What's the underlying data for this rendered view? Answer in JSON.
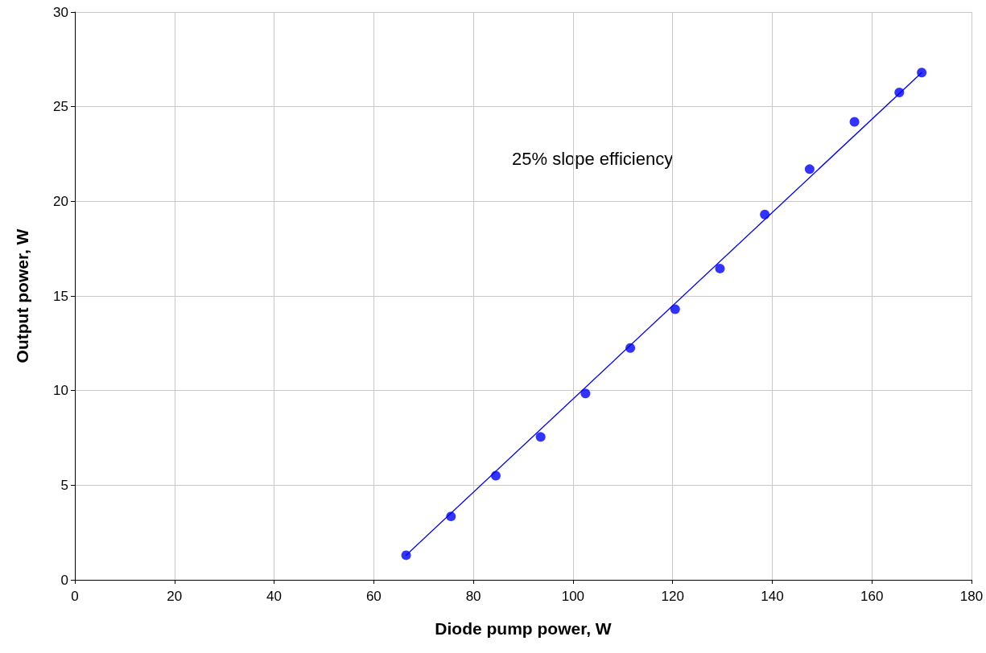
{
  "chart_data": {
    "type": "scatter",
    "xlabel": "Diode pump power, W",
    "ylabel": "Output power, W",
    "series": [
      {
        "color": "#0000ff",
        "marker": "circle",
        "x": [
          66.5,
          75.5,
          84.5,
          93.5,
          102.5,
          111.5,
          120.5,
          129.5,
          138.5,
          147.5,
          156.5,
          165.5,
          170
        ],
        "values": [
          1.3,
          3.35,
          5.5,
          7.55,
          9.85,
          12.25,
          14.3,
          16.45,
          19.3,
          21.7,
          24.2,
          25.75,
          26.8
        ]
      },
      {
        "type": "line",
        "color": "#0000ff",
        "marker": "none",
        "line_style": "solid",
        "x": [
          66.5,
          170
        ],
        "values": [
          1.3,
          26.8
        ]
      }
    ],
    "annotations": [
      "25% slope efficiency"
    ],
    "xlim": [
      0,
      180
    ],
    "xticks": [
      0,
      20,
      40,
      60,
      80,
      100,
      120,
      140,
      160,
      180
    ],
    "ylim": [
      0,
      30
    ],
    "yticks": [
      0,
      5,
      10,
      15,
      20,
      25,
      30
    ],
    "grid": true
  }
}
